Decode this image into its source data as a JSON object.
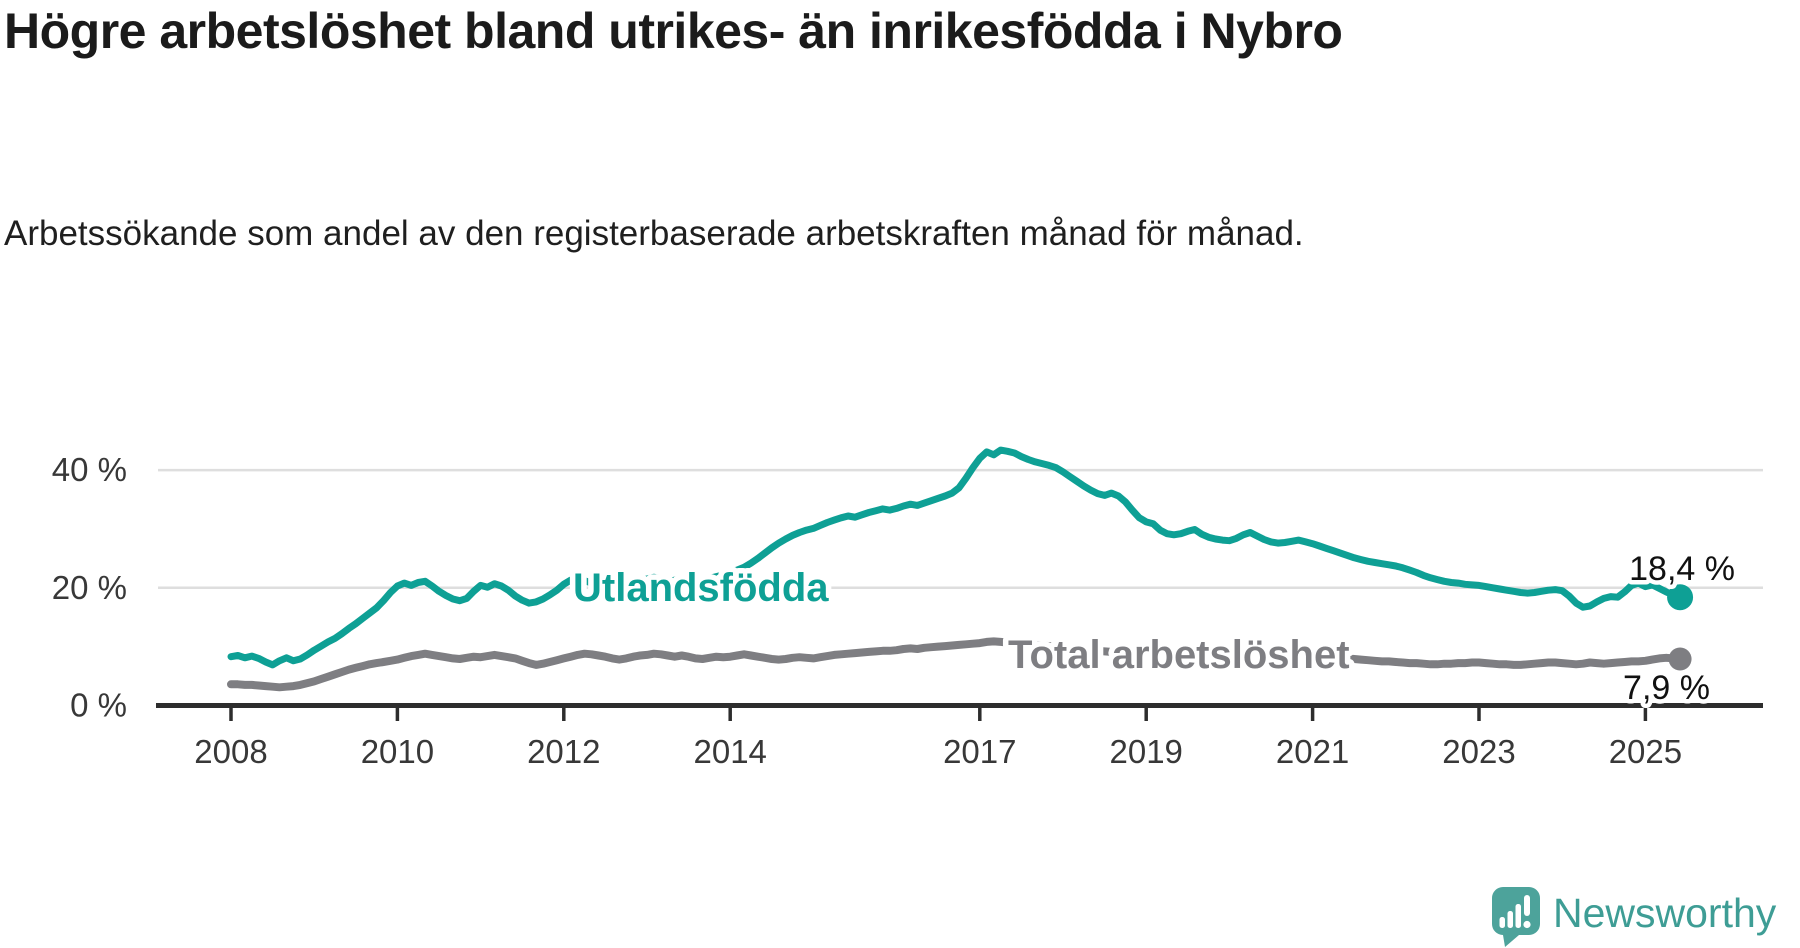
{
  "header": {
    "title": "Högre arbetslöshet bland utrikes- än inrikesfödda i Nybro",
    "subtitle": "Arbetssökande som andel av den registerbaserade arbetskraften månad för månad."
  },
  "chart_data": {
    "type": "line",
    "unit": "percent",
    "frequency": "monthly",
    "x_start": {
      "year": 2008,
      "month": 1
    },
    "x_end": {
      "year": 2025,
      "month": 6
    },
    "grid": "horizontal",
    "legend": "inline-labels",
    "y_axis": {
      "ticks": [
        {
          "value": 0,
          "label": "0 %"
        },
        {
          "value": 20,
          "label": "20 %"
        },
        {
          "value": 40,
          "label": "40 %"
        }
      ],
      "ylim": [
        0,
        47
      ]
    },
    "x_axis": {
      "ticks": [
        {
          "year": 2008,
          "label": "2008"
        },
        {
          "year": 2010,
          "label": "2010"
        },
        {
          "year": 2012,
          "label": "2012"
        },
        {
          "year": 2014,
          "label": "2014"
        },
        {
          "year": 2017,
          "label": "2017"
        },
        {
          "year": 2019,
          "label": "2019"
        },
        {
          "year": 2021,
          "label": "2021"
        },
        {
          "year": 2023,
          "label": "2023"
        },
        {
          "year": 2025,
          "label": "2025"
        }
      ]
    },
    "series": [
      {
        "name": "Utlandsfödda",
        "slug": "utlandsfodda",
        "color": "#0ea095",
        "end_value": 18.4,
        "end_label": "18,4 %",
        "values": [
          8.3,
          8.5,
          8.1,
          8.4,
          8.0,
          7.4,
          6.9,
          7.6,
          8.1,
          7.6,
          7.9,
          8.6,
          9.4,
          10.1,
          10.8,
          11.4,
          12.2,
          13.1,
          13.9,
          14.8,
          15.7,
          16.6,
          17.8,
          19.2,
          20.3,
          20.8,
          20.4,
          20.9,
          21.1,
          20.3,
          19.4,
          18.7,
          18.1,
          17.8,
          18.2,
          19.4,
          20.4,
          20.1,
          20.7,
          20.3,
          19.6,
          18.6,
          17.9,
          17.4,
          17.6,
          18.1,
          18.8,
          19.6,
          20.6,
          21.3,
          21.6,
          21.2,
          20.8,
          21.2,
          21.6,
          21.3,
          20.9,
          21.1,
          21.4,
          21.2,
          21.5,
          21.8,
          21.4,
          21.0,
          21.3,
          21.6,
          21.2,
          20.9,
          21.2,
          21.6,
          21.9,
          22.2,
          22.6,
          23.0,
          23.5,
          24.2,
          25.0,
          25.9,
          26.8,
          27.6,
          28.3,
          28.9,
          29.4,
          29.8,
          30.1,
          30.6,
          31.1,
          31.5,
          31.9,
          32.2,
          32.0,
          32.4,
          32.8,
          33.1,
          33.4,
          33.2,
          33.5,
          33.9,
          34.2,
          34.0,
          34.4,
          34.8,
          35.2,
          35.6,
          36.1,
          37.0,
          38.6,
          40.4,
          42.0,
          43.1,
          42.6,
          43.4,
          43.2,
          42.9,
          42.3,
          41.8,
          41.4,
          41.1,
          40.8,
          40.4,
          39.7,
          38.9,
          38.1,
          37.3,
          36.6,
          36.0,
          35.7,
          36.1,
          35.6,
          34.6,
          33.2,
          31.9,
          31.2,
          30.9,
          29.8,
          29.2,
          29.0,
          29.2,
          29.6,
          29.9,
          29.1,
          28.6,
          28.3,
          28.1,
          28.0,
          28.4,
          29.0,
          29.4,
          28.8,
          28.2,
          27.8,
          27.6,
          27.7,
          27.9,
          28.1,
          27.8,
          27.5,
          27.1,
          26.7,
          26.3,
          25.9,
          25.5,
          25.1,
          24.8,
          24.5,
          24.3,
          24.1,
          23.9,
          23.7,
          23.4,
          23.0,
          22.6,
          22.1,
          21.7,
          21.4,
          21.1,
          20.9,
          20.8,
          20.6,
          20.5,
          20.4,
          20.2,
          20.0,
          19.8,
          19.6,
          19.4,
          19.2,
          19.1,
          19.2,
          19.4,
          19.6,
          19.7,
          19.5,
          18.6,
          17.4,
          16.7,
          16.9,
          17.6,
          18.2,
          18.5,
          18.4,
          19.3,
          20.4,
          20.8,
          20.2,
          20.5,
          19.9,
          19.3,
          18.8,
          18.4
        ]
      },
      {
        "name": "Total arbetslöshet",
        "slug": "total-arbetsloshet",
        "color": "#7e7e82",
        "end_value": 7.9,
        "end_label": "7,9 %",
        "values": [
          3.6,
          3.6,
          3.5,
          3.5,
          3.4,
          3.3,
          3.2,
          3.1,
          3.2,
          3.3,
          3.5,
          3.8,
          4.1,
          4.5,
          4.9,
          5.3,
          5.7,
          6.1,
          6.4,
          6.7,
          7.0,
          7.2,
          7.4,
          7.6,
          7.8,
          8.1,
          8.4,
          8.6,
          8.8,
          8.6,
          8.4,
          8.2,
          8.0,
          7.9,
          8.1,
          8.3,
          8.2,
          8.4,
          8.6,
          8.4,
          8.2,
          8.0,
          7.6,
          7.2,
          6.9,
          7.1,
          7.4,
          7.7,
          8.0,
          8.3,
          8.6,
          8.8,
          8.7,
          8.5,
          8.3,
          8.0,
          7.8,
          8.0,
          8.3,
          8.5,
          8.6,
          8.8,
          8.7,
          8.5,
          8.3,
          8.5,
          8.3,
          8.0,
          7.9,
          8.1,
          8.3,
          8.2,
          8.3,
          8.5,
          8.7,
          8.5,
          8.3,
          8.1,
          7.9,
          7.8,
          7.9,
          8.1,
          8.2,
          8.1,
          8.0,
          8.2,
          8.4,
          8.6,
          8.7,
          8.8,
          8.9,
          9.0,
          9.1,
          9.2,
          9.3,
          9.3,
          9.4,
          9.6,
          9.7,
          9.6,
          9.8,
          9.9,
          10.0,
          10.1,
          10.2,
          10.3,
          10.4,
          10.5,
          10.6,
          10.8,
          10.9,
          10.8,
          10.7,
          10.6,
          10.5,
          10.4,
          10.3,
          10.2,
          10.1,
          10.0,
          9.9,
          9.8,
          9.6,
          9.5,
          9.4,
          9.3,
          9.2,
          9.1,
          9.0,
          8.9,
          8.9,
          8.8,
          8.8,
          8.7,
          8.6,
          8.5,
          8.4,
          8.4,
          8.5,
          8.5,
          8.4,
          8.3,
          8.3,
          8.4,
          8.5,
          8.7,
          9.0,
          9.3,
          9.4,
          9.3,
          9.2,
          9.1,
          9.0,
          8.9,
          8.8,
          8.7,
          8.6,
          8.5,
          8.4,
          8.3,
          8.1,
          8.0,
          7.9,
          7.8,
          7.7,
          7.6,
          7.5,
          7.5,
          7.4,
          7.3,
          7.2,
          7.2,
          7.1,
          7.0,
          7.0,
          7.1,
          7.1,
          7.2,
          7.2,
          7.3,
          7.3,
          7.2,
          7.1,
          7.0,
          7.0,
          6.9,
          6.9,
          7.0,
          7.1,
          7.2,
          7.3,
          7.3,
          7.2,
          7.1,
          7.0,
          7.1,
          7.3,
          7.2,
          7.1,
          7.2,
          7.3,
          7.4,
          7.5,
          7.5,
          7.6,
          7.8,
          8.0,
          8.1,
          8.0,
          7.9
        ]
      }
    ],
    "colors": {
      "grid": "#dedede",
      "axis": "#2d2d2d",
      "tick_label": "#383838"
    }
  },
  "footer": {
    "brand": "Newsworthy",
    "brand_color": "#3e9d95",
    "logo_color": "#4da39b",
    "logo_icon": "speech-bubble-bar-chart-exclamation"
  }
}
